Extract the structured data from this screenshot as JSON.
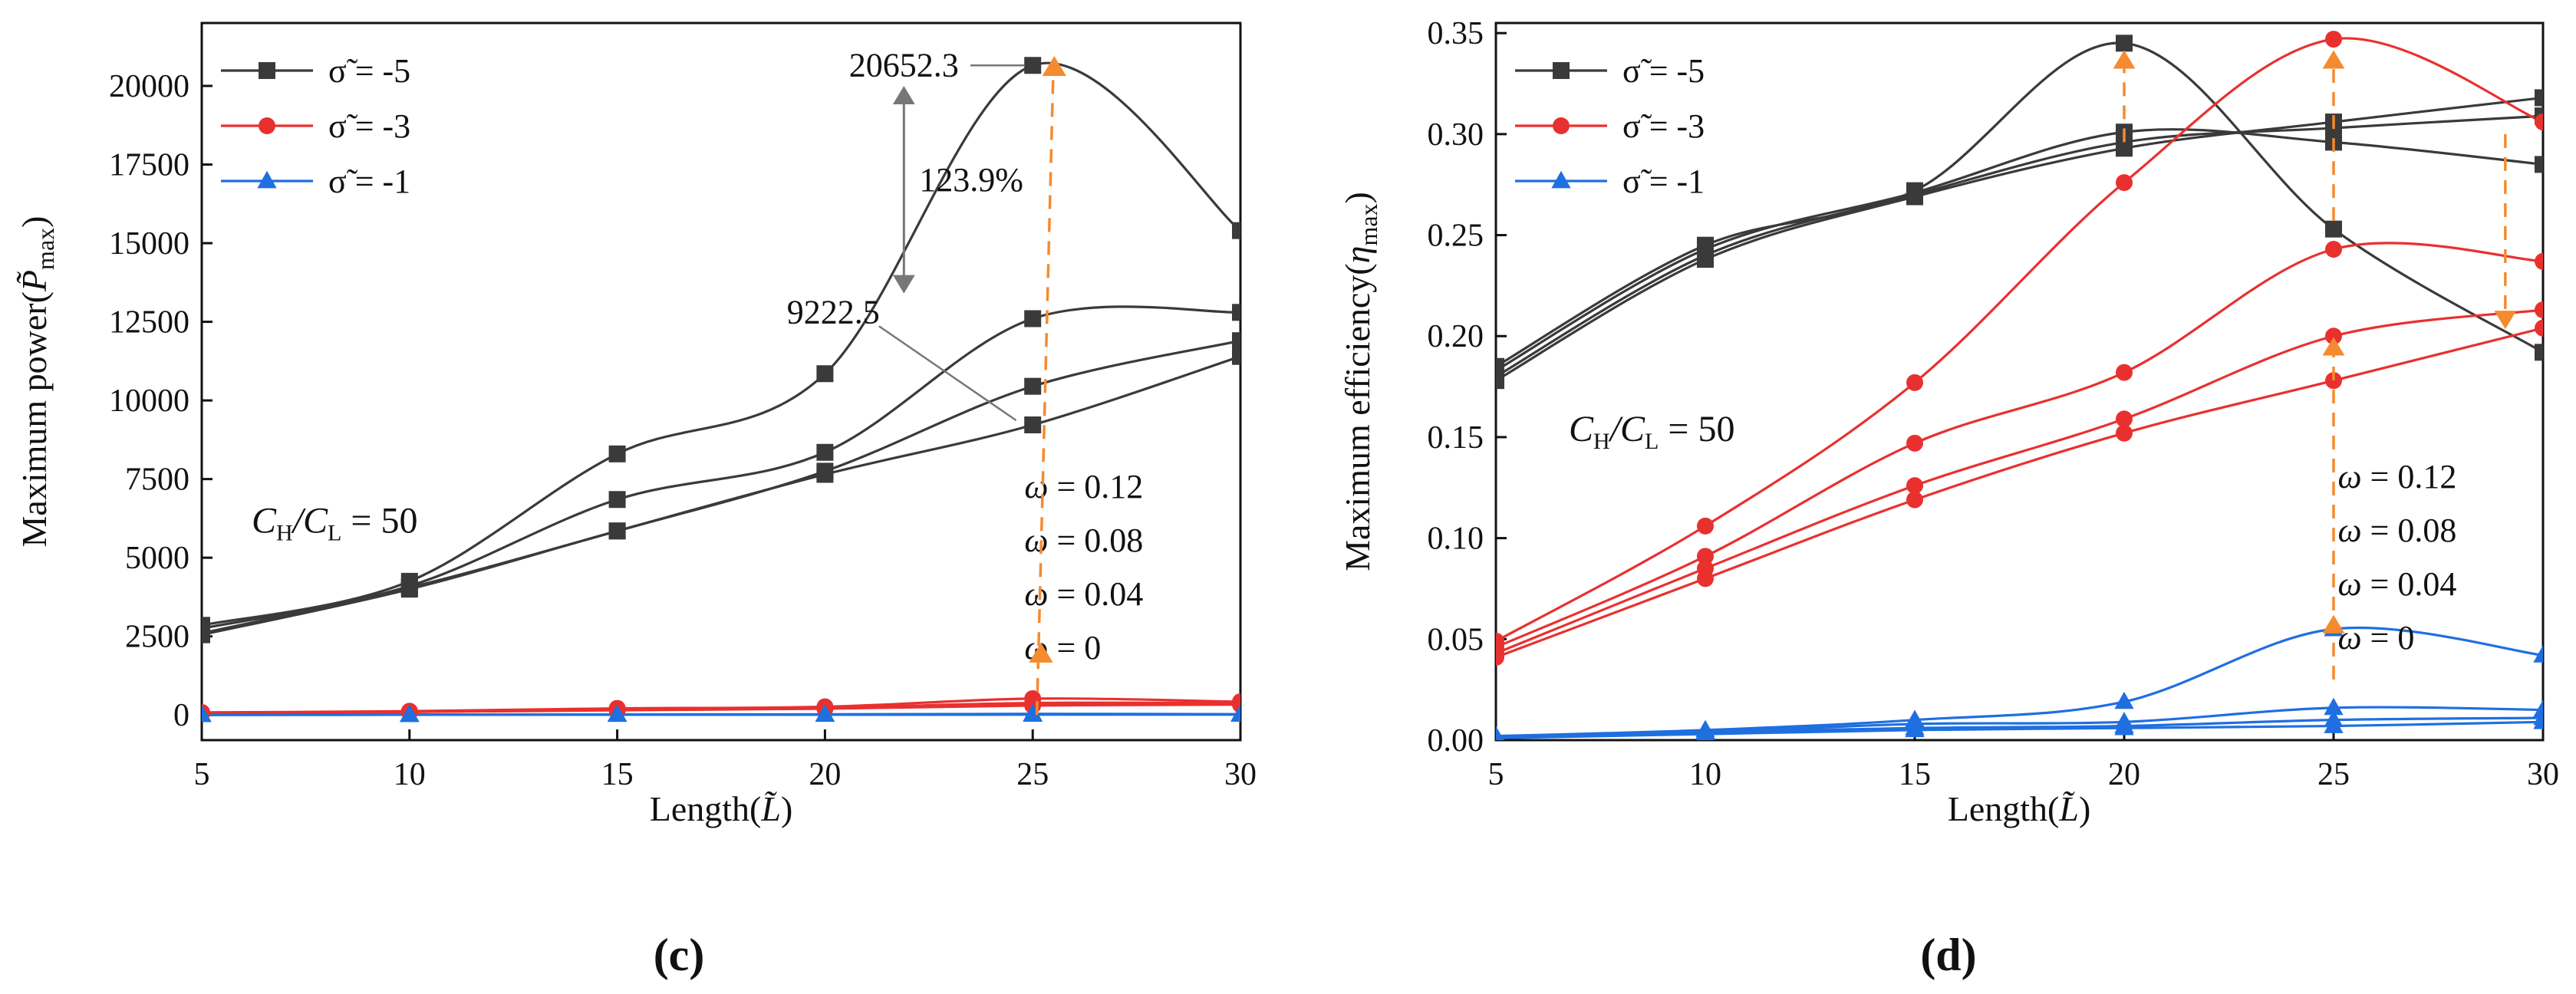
{
  "chart_data": [
    {
      "type": "line",
      "panel_label": "(c)",
      "xlabel": "Length(",
      "xlabel_sym": "L̃",
      "xlabel_tail": ")",
      "ylabel": "Maximum power(",
      "ylabel_sym": "P̃",
      "ylabel_sub": "max",
      "ylabel_tail": ")",
      "xlim": [
        5,
        30
      ],
      "ylim": [
        -800,
        22000
      ],
      "xticks": [
        5,
        10,
        15,
        20,
        25,
        30
      ],
      "yticks": [
        0,
        2500,
        5000,
        7500,
        10000,
        12500,
        15000,
        17500,
        20000
      ],
      "x": [
        5,
        10,
        15,
        20,
        25,
        30
      ],
      "legend": [
        {
          "label": "σ̃ = -5",
          "color": "#3a3a3a",
          "marker": "square"
        },
        {
          "label": "σ̃ = -3",
          "color": "#e8312f",
          "marker": "circle"
        },
        {
          "label": "σ̃ = -1",
          "color": "#1f6fe0",
          "marker": "triangle"
        }
      ],
      "series": [
        {
          "name": "σ̃ = -5, ω = 0.12",
          "color": "#3a3a3a",
          "marker": "square",
          "values": [
            2850,
            4250,
            8300,
            10850,
            20652.3,
            15400
          ]
        },
        {
          "name": "σ̃ = -5, ω = 0.08",
          "color": "#3a3a3a",
          "marker": "square",
          "values": [
            2750,
            4100,
            6850,
            8350,
            12600,
            12800
          ]
        },
        {
          "name": "σ̃ = -5, ω = 0.04",
          "color": "#3a3a3a",
          "marker": "square",
          "values": [
            2600,
            4050,
            5850,
            7750,
            10450,
            11900
          ]
        },
        {
          "name": "σ̃ = -5, ω = 0",
          "color": "#3a3a3a",
          "marker": "square",
          "values": [
            2550,
            4000,
            5850,
            7650,
            9222.5,
            11400
          ]
        },
        {
          "name": "σ̃ = -3, ω = 0.12",
          "color": "#e8312f",
          "marker": "circle",
          "values": [
            80,
            120,
            210,
            260,
            520,
            420
          ]
        },
        {
          "name": "σ̃ = -3, ω = 0.08",
          "color": "#e8312f",
          "marker": "circle",
          "values": [
            70,
            110,
            180,
            230,
            380,
            380
          ]
        },
        {
          "name": "σ̃ = -3, ω = 0.04",
          "color": "#e8312f",
          "marker": "circle",
          "values": [
            60,
            100,
            160,
            210,
            330,
            350
          ]
        },
        {
          "name": "σ̃ = -3, ω = 0",
          "color": "#e8312f",
          "marker": "circle",
          "values": [
            60,
            95,
            150,
            200,
            300,
            330
          ]
        },
        {
          "name": "σ̃ = -1, ω = 0.12",
          "color": "#1f6fe0",
          "marker": "triangle",
          "values": [
            5,
            10,
            15,
            20,
            35,
            25
          ]
        },
        {
          "name": "σ̃ = -1, ω = 0.08",
          "color": "#1f6fe0",
          "marker": "triangle",
          "values": [
            4,
            8,
            12,
            15,
            20,
            20
          ]
        },
        {
          "name": "σ̃ = -1, ω = 0.04",
          "color": "#1f6fe0",
          "marker": "triangle",
          "values": [
            3,
            7,
            10,
            12,
            15,
            15
          ]
        },
        {
          "name": "σ̃ = -1, ω = 0",
          "color": "#1f6fe0",
          "marker": "triangle",
          "values": [
            3,
            6,
            9,
            10,
            12,
            12
          ]
        }
      ],
      "annotations": {
        "constant_prefix": "C",
        "constant_sub1": "H",
        "constant_slash": "/C",
        "constant_sub2": "L",
        "constant_tail": " = 50",
        "omega_labels": [
          "ω = 0.12",
          "ω = 0.08",
          "ω = 0.04",
          "ω = 0"
        ],
        "peak_label": "20652.3",
        "peak_value": 20652.3,
        "base_label": "9222.5",
        "base_value": 9222.5,
        "gain_label": "123.9%",
        "arrow_x": 25.5
      }
    },
    {
      "type": "line",
      "panel_label": "(d)",
      "xlabel": "Length(",
      "xlabel_sym": "L̃",
      "xlabel_tail": ")",
      "ylabel": "Maximum efficiency(",
      "ylabel_sym": "η",
      "ylabel_sub": "max",
      "ylabel_tail": ")",
      "xlim": [
        5,
        30
      ],
      "ylim": [
        0,
        0.355
      ],
      "xticks": [
        5,
        10,
        15,
        20,
        25,
        30
      ],
      "yticks": [
        "0.00",
        "0.05",
        "0.10",
        "0.15",
        "0.20",
        "0.25",
        "0.30",
        "0.35"
      ],
      "x": [
        5,
        10,
        15,
        20,
        25,
        30
      ],
      "legend": [
        {
          "label": "σ̃ = -5",
          "color": "#3a3a3a",
          "marker": "square"
        },
        {
          "label": "σ̃ = -3",
          "color": "#e8312f",
          "marker": "circle"
        },
        {
          "label": "σ̃ = -1",
          "color": "#1f6fe0",
          "marker": "triangle"
        }
      ],
      "series": [
        {
          "name": "σ̃ = -5, ω = 0.12",
          "color": "#3a3a3a",
          "marker": "square",
          "values": [
            0.185,
            0.245,
            0.272,
            0.345,
            0.253,
            0.192
          ]
        },
        {
          "name": "σ̃ = -5, ω = 0.08",
          "color": "#3a3a3a",
          "marker": "square",
          "values": [
            0.183,
            0.243,
            0.271,
            0.301,
            0.296,
            0.285
          ]
        },
        {
          "name": "σ̃ = -5, ω = 0.04",
          "color": "#3a3a3a",
          "marker": "square",
          "values": [
            0.18,
            0.24,
            0.27,
            0.296,
            0.303,
            0.309
          ]
        },
        {
          "name": "σ̃ = -5, ω = 0",
          "color": "#3a3a3a",
          "marker": "square",
          "values": [
            0.178,
            0.238,
            0.269,
            0.293,
            0.306,
            0.318
          ]
        },
        {
          "name": "σ̃ = -3, ω = 0.12",
          "color": "#e8312f",
          "marker": "circle",
          "values": [
            0.049,
            0.106,
            0.177,
            0.276,
            0.347,
            0.306
          ]
        },
        {
          "name": "σ̃ = -3, ω = 0.08",
          "color": "#e8312f",
          "marker": "circle",
          "values": [
            0.046,
            0.091,
            0.147,
            0.182,
            0.243,
            0.237
          ]
        },
        {
          "name": "σ̃ = -3, ω = 0.04",
          "color": "#e8312f",
          "marker": "circle",
          "values": [
            0.043,
            0.085,
            0.126,
            0.159,
            0.2,
            0.213
          ]
        },
        {
          "name": "σ̃ = -3, ω = 0",
          "color": "#e8312f",
          "marker": "circle",
          "values": [
            0.041,
            0.08,
            0.119,
            0.152,
            0.178,
            0.204
          ]
        },
        {
          "name": "σ̃ = -1, ω = 0.12",
          "color": "#1f6fe0",
          "marker": "triangle",
          "values": [
            0.002,
            0.005,
            0.01,
            0.019,
            0.055,
            0.042
          ]
        },
        {
          "name": "σ̃ = -1, ω = 0.08",
          "color": "#1f6fe0",
          "marker": "triangle",
          "values": [
            0.002,
            0.004,
            0.008,
            0.009,
            0.016,
            0.015
          ]
        },
        {
          "name": "σ̃ = -1, ω = 0.04",
          "color": "#1f6fe0",
          "marker": "triangle",
          "values": [
            0.001,
            0.004,
            0.006,
            0.007,
            0.01,
            0.011
          ]
        },
        {
          "name": "σ̃ = -1, ω = 0",
          "color": "#1f6fe0",
          "marker": "triangle",
          "values": [
            0.001,
            0.003,
            0.005,
            0.006,
            0.007,
            0.009
          ]
        }
      ],
      "annotations": {
        "constant_prefix": "C",
        "constant_sub1": "H",
        "constant_slash": "/C",
        "constant_sub2": "L",
        "constant_tail": " = 50",
        "omega_labels": [
          "ω = 0.12",
          "ω = 0.08",
          "ω = 0.04",
          "ω = 0"
        ]
      }
    }
  ]
}
